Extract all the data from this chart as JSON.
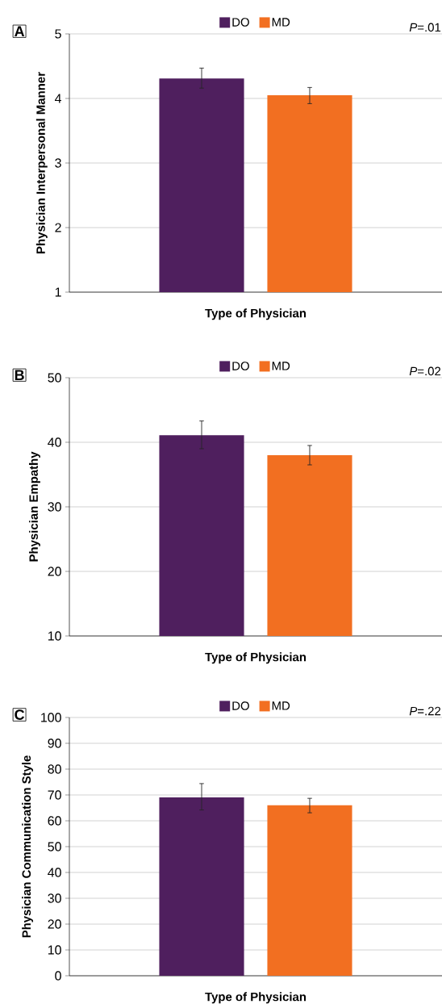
{
  "chart_data": [
    {
      "type": "bar",
      "xlabel": "Type of Physician",
      "ylabel": "Physician Interpersonal Manner",
      "categories": [
        null
      ],
      "series": [
        {
          "name": "DO",
          "color": "#4f1f5e",
          "values": [
            4.31
          ],
          "errors": [
            [
              4.16,
              4.47
            ]
          ]
        },
        {
          "name": "MD",
          "color": "#f26f21",
          "values": [
            4.05
          ],
          "errors": [
            [
              3.92,
              4.17
            ]
          ]
        }
      ],
      "ylim": [
        1,
        5
      ],
      "yticks": [
        1,
        2,
        3,
        4,
        5
      ],
      "grid": "y",
      "legend": "top",
      "annotations": [
        "A",
        "*P*=.01"
      ]
    },
    {
      "type": "bar",
      "xlabel": "Type of Physician",
      "ylabel": "Physician Empathy",
      "categories": [
        null
      ],
      "series": [
        {
          "name": "DO",
          "color": "#4f1f5e",
          "values": [
            41.1
          ],
          "errors": [
            [
              39.0,
              43.3
            ]
          ]
        },
        {
          "name": "MD",
          "color": "#f26f21",
          "values": [
            38.0
          ],
          "errors": [
            [
              36.5,
              39.5
            ]
          ]
        }
      ],
      "ylim": [
        10,
        50
      ],
      "yticks": [
        10,
        20,
        30,
        40,
        50
      ],
      "grid": "y",
      "legend": "top",
      "annotations": [
        "B",
        "*P*=.02"
      ]
    },
    {
      "type": "bar",
      "xlabel": "Type of Physician",
      "ylabel": "Physician Communication Style",
      "categories": [
        null
      ],
      "series": [
        {
          "name": "DO",
          "color": "#4f1f5e",
          "values": [
            69.1
          ],
          "errors": [
            [
              64.2,
              74.4
            ]
          ]
        },
        {
          "name": "MD",
          "color": "#f26f21",
          "values": [
            66.0
          ],
          "errors": [
            [
              63.1,
              68.7
            ]
          ]
        }
      ],
      "ylim": [
        0,
        100
      ],
      "yticks": [
        0,
        10,
        20,
        30,
        40,
        50,
        60,
        70,
        80,
        90,
        100
      ],
      "grid": "y",
      "legend": "top",
      "annotations": [
        "C",
        "*P*=.22"
      ]
    }
  ]
}
